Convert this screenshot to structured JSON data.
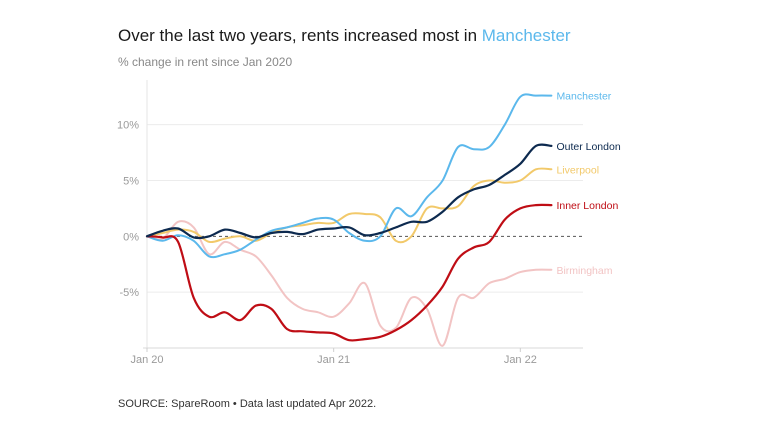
{
  "title_prefix": "Over the last two years, rents increased most in ",
  "title_highlight": "Manchester",
  "subtitle": "% change in rent since Jan 2020",
  "source": "SOURCE: SpareRoom • Data last updated Apr 2022.",
  "chart_data": {
    "type": "line",
    "ylim": [
      -10,
      14
    ],
    "xlim": [
      0,
      27
    ],
    "grid": true,
    "legend": "inline-right",
    "x_ticks": [
      {
        "label": "Jan 20",
        "x": 0
      },
      {
        "label": "Jan 21",
        "x": 12
      },
      {
        "label": "Jan 22",
        "x": 24
      }
    ],
    "y_ticks": [
      {
        "label": "10%",
        "value": 10
      },
      {
        "label": "5%",
        "value": 5
      },
      {
        "label": "0%",
        "value": 0
      },
      {
        "label": "-5%",
        "value": -5
      }
    ],
    "x": [
      0,
      1,
      2,
      3,
      4,
      5,
      6,
      7,
      8,
      9,
      10,
      11,
      12,
      13,
      14,
      15,
      16,
      17,
      18,
      19,
      20,
      21,
      22,
      23,
      24,
      25,
      26,
      27
    ],
    "series": [
      {
        "name": "Manchester",
        "color": "#5bb8ec",
        "values": [
          0,
          -0.4,
          0.1,
          -0.4,
          -1.8,
          -1.6,
          -1.2,
          -0.3,
          0.5,
          0.8,
          1.2,
          1.6,
          1.5,
          0.3,
          -0.4,
          0,
          2.5,
          1.8,
          3.5,
          5,
          8,
          7.8,
          8,
          10,
          12.5,
          12.6,
          12.6,
          12.5
        ]
      },
      {
        "name": "Outer London",
        "color": "#0d2a4f",
        "values": [
          0,
          0.5,
          0.7,
          -0.1,
          0,
          0.6,
          0.3,
          -0.1,
          0.3,
          0.4,
          0.2,
          0.6,
          0.7,
          0.8,
          0.1,
          0.3,
          0.8,
          1.3,
          1.3,
          2.2,
          3.5,
          4.2,
          4.6,
          5.5,
          6.5,
          8.1,
          8.1,
          8.1
        ]
      },
      {
        "name": "Liverpool",
        "color": "#f2c96a",
        "values": [
          0,
          0.3,
          0.6,
          0.4,
          -0.5,
          -0.2,
          0,
          -0.4,
          0.3,
          0.8,
          1,
          1.2,
          1.2,
          2,
          2,
          1.7,
          -0.4,
          0,
          2.5,
          2.5,
          2.7,
          4.5,
          5,
          4.8,
          5,
          6,
          6,
          6
        ]
      },
      {
        "name": "Inner London",
        "color": "#bf0d15",
        "values": [
          0,
          -0.1,
          -0.5,
          -5.5,
          -7.2,
          -6.8,
          -7.5,
          -6.2,
          -6.5,
          -8.3,
          -8.5,
          -8.6,
          -8.7,
          -9.3,
          -9.2,
          -9,
          -8.4,
          -7.5,
          -6.2,
          -4.5,
          -2,
          -1,
          -0.5,
          1.5,
          2.5,
          2.8,
          2.8,
          2.8
        ]
      },
      {
        "name": "Birmingham",
        "color": "#f2c4c4",
        "values": [
          0,
          -0.2,
          1.3,
          0.8,
          -1.6,
          -0.5,
          -1.2,
          -1.8,
          -3.5,
          -5.5,
          -6.5,
          -6.8,
          -7.2,
          -6,
          -4.2,
          -8,
          -8.2,
          -5.5,
          -6.5,
          -9.8,
          -5.5,
          -5.5,
          -4.2,
          -3.8,
          -3.2,
          -3,
          -3,
          -3
        ]
      }
    ]
  }
}
